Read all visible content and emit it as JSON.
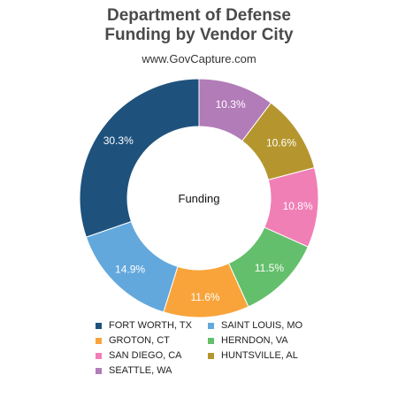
{
  "chart_data": {
    "type": "pie",
    "variant": "donut",
    "title": [
      "Department of Defense",
      "Funding by Vendor City"
    ],
    "subtitle": "www.GovCapture.com",
    "center_label": "Funding",
    "legend_position": "bottom",
    "slices": [
      {
        "label": "SEATTLE, WA",
        "value": 10.3,
        "display": "10.3%",
        "color": "#b27cb8"
      },
      {
        "label": "HUNTSVILLE, AL",
        "value": 10.6,
        "display": "10.6%",
        "color": "#b5962e"
      },
      {
        "label": "SAN DIEGO, CA",
        "value": 10.8,
        "display": "10.8%",
        "color": "#f07fb6"
      },
      {
        "label": "HERNDON, VA",
        "value": 11.5,
        "display": "11.5%",
        "color": "#63bf6b"
      },
      {
        "label": "GROTON, CT",
        "value": 11.6,
        "display": "11.6%",
        "color": "#f8a43b"
      },
      {
        "label": "SAINT LOUIS, MO",
        "value": 14.9,
        "display": "14.9%",
        "color": "#63a8dd"
      },
      {
        "label": "FORT WORTH, TX",
        "value": 30.3,
        "display": "30.3%",
        "color": "#1e527d"
      }
    ],
    "legend": [
      "FORT WORTH, TX",
      "SAINT LOUIS, MO",
      "GROTON, CT",
      "HERNDON, VA",
      "SAN DIEGO, CA",
      "HUNTSVILLE, AL",
      "SEATTLE, WA"
    ]
  }
}
